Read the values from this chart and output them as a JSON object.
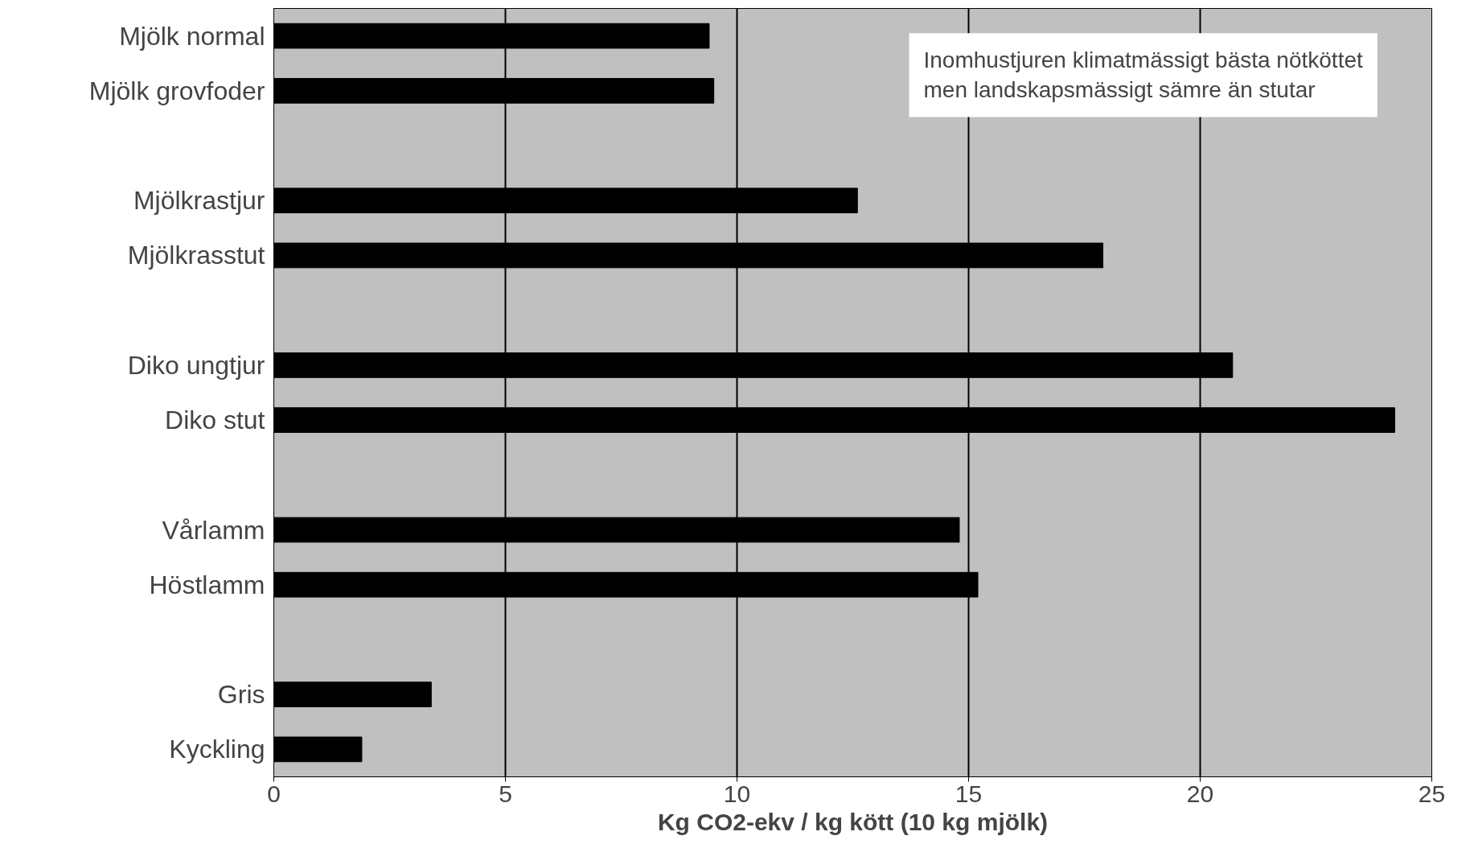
{
  "chart_data": {
    "type": "bar",
    "orientation": "horizontal",
    "categories": [
      "Mjölk normal",
      "Mjölk grovfoder",
      null,
      "Mjölkrastjur",
      "Mjölkrasstut",
      null,
      "Diko ungtjur",
      "Diko stut",
      null,
      "Vårlamm",
      "Höstlamm",
      null,
      "Gris",
      "Kyckling"
    ],
    "values": [
      9.4,
      9.5,
      null,
      12.6,
      17.9,
      null,
      20.7,
      24.2,
      null,
      14.8,
      15.2,
      null,
      3.4,
      1.9
    ],
    "color": "#000000",
    "xlabel": "Kg CO2-ekv / kg kött (10 kg mjölk)",
    "xlim": [
      0,
      25
    ],
    "xticks": [
      0,
      5,
      10,
      15,
      20,
      25
    ],
    "grid": "x",
    "annotations": [
      "Inomhustjuren klimatmässigt bästa nötköttet\nmen landskapsmässigt sämre än stutar"
    ]
  }
}
